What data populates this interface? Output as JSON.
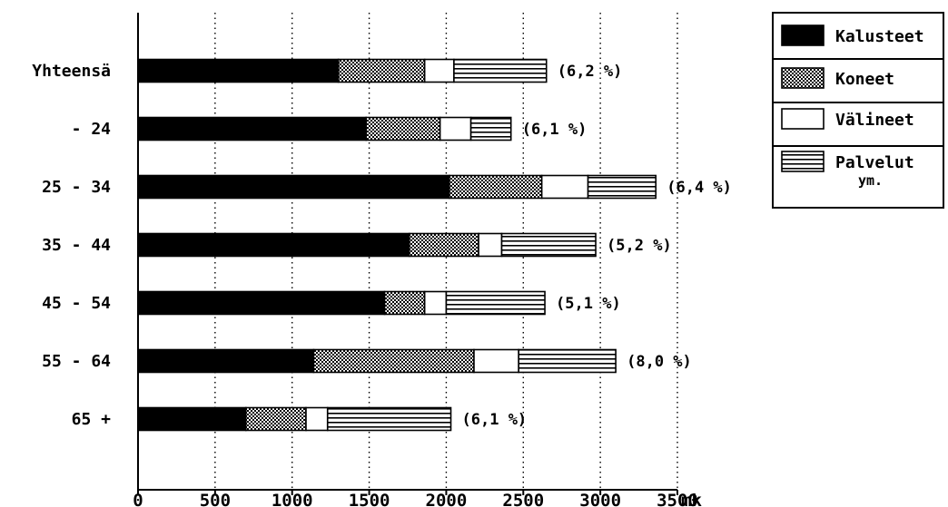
{
  "chart_data": {
    "type": "bar",
    "orientation": "horizontal",
    "stacked": true,
    "categories": [
      "Yhteensä",
      "- 24",
      "25 - 34",
      "35 - 44",
      "45 - 54",
      "55 - 64",
      "65 +"
    ],
    "series": [
      {
        "name": "Kalusteet",
        "values": [
          1300,
          1480,
          2020,
          1760,
          1600,
          1140,
          700
        ],
        "pattern": "solid",
        "color": "#000000"
      },
      {
        "name": "Koneet",
        "values": [
          560,
          480,
          600,
          450,
          260,
          1040,
          390
        ],
        "pattern": "dots",
        "color": "#555555"
      },
      {
        "name": "Välineet",
        "values": [
          190,
          200,
          300,
          150,
          140,
          290,
          140
        ],
        "pattern": "blank",
        "color": "#ffffff"
      },
      {
        "name": "Palvelut\nym.",
        "values": [
          600,
          260,
          440,
          610,
          640,
          630,
          800
        ],
        "pattern": "horizontal-lines",
        "color": "#ffffff"
      }
    ],
    "annotations": [
      "(6,2 %)",
      "(6,1 %)",
      "(6,4 %)",
      "(5,2 %)",
      "(5,1 %)",
      "(8,0 %)",
      "(6,1 %)"
    ],
    "x_ticks": [
      "0",
      "500",
      "1000",
      "1500",
      "2000",
      "2500",
      "3000",
      "3500"
    ],
    "x_unit": "mk",
    "xlim": [
      0,
      3500
    ],
    "grid": "vertical-dotted",
    "legend_position": "top-right"
  }
}
